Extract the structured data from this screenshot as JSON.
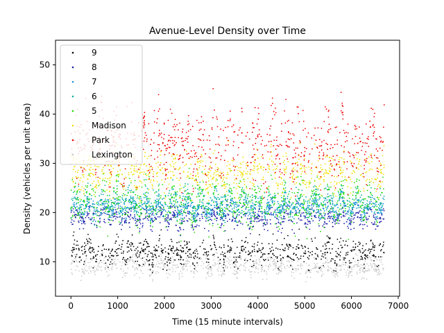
{
  "chart_data": {
    "type": "scatter",
    "title": "Avenue-Level Density over Time",
    "xlabel": "Time (15 minute intervals)",
    "ylabel": "Density (vehicles per unit area)",
    "xlim": [
      -330,
      7030
    ],
    "ylim": [
      3,
      55
    ],
    "x_ticks": [
      0,
      1000,
      2000,
      3000,
      4000,
      5000,
      6000,
      7000
    ],
    "y_ticks": [
      10,
      20,
      30,
      40,
      50
    ],
    "x_range": [
      0,
      6700
    ],
    "legend_placement": "upper-left",
    "grid": false,
    "series": [
      {
        "name": "9",
        "color": "#000000",
        "center": 12,
        "spread": 2.2,
        "min": 6,
        "max": 17
      },
      {
        "name": "8",
        "color": "#1a1aa8",
        "center": 19,
        "spread": 1.8,
        "min": 14,
        "max": 24
      },
      {
        "name": "7",
        "color": "#1a8fd6",
        "center": 21,
        "spread": 1.8,
        "min": 15,
        "max": 27
      },
      {
        "name": "6",
        "color": "#00b0a0",
        "center": 22,
        "spread": 2.5,
        "min": 15,
        "max": 30
      },
      {
        "name": "5",
        "color": "#22dd00",
        "center": 22,
        "spread": 4,
        "min": 12,
        "max": 33
      },
      {
        "name": "Madison",
        "color": "#f0e000",
        "center": 28,
        "spread": 3.2,
        "min": 20,
        "max": 38
      },
      {
        "name": "Park",
        "color": "#ee0000",
        "center": 34,
        "spread": 6,
        "min": 18,
        "max": 52
      },
      {
        "name": "Lexington",
        "color": "#cccccc",
        "center": 9,
        "spread": 1.6,
        "min": 5,
        "max": 14
      }
    ]
  }
}
